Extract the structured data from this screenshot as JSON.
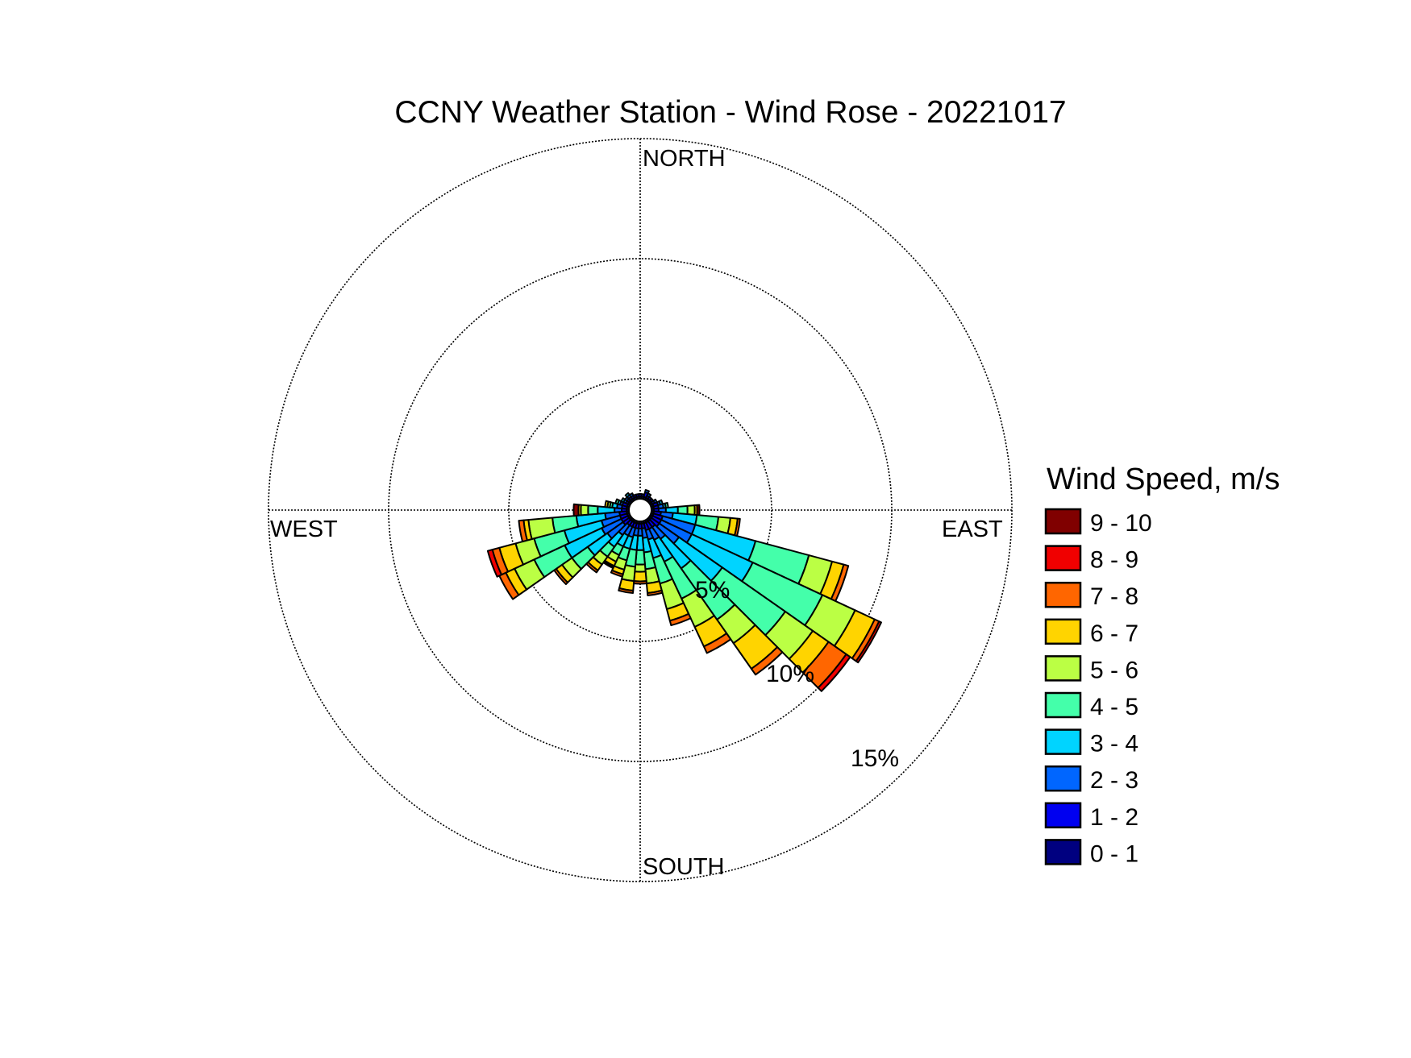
{
  "chart_data": {
    "type": "polar-stacked-bar",
    "title": "CCNY Weather Station - Wind Rose - 20221017",
    "compass_labels": {
      "north": "NORTH",
      "east": "EAST",
      "south": "SOUTH",
      "west": "WEST"
    },
    "radial_unit": "percent frequency",
    "radial_ticks": [
      5,
      10,
      15
    ],
    "radial_tick_labels": [
      "5%",
      "10%",
      "15%"
    ],
    "rlim": [
      0,
      15
    ],
    "grid": true,
    "legend": {
      "title": "Wind Speed, m/s",
      "placement": "right",
      "entries": [
        {
          "label": "9 - 10",
          "color": "#800000"
        },
        {
          "label": "8 - 9",
          "color": "#f00000"
        },
        {
          "label": "7 - 8",
          "color": "#ff6600"
        },
        {
          "label": "6 - 7",
          "color": "#ffd400"
        },
        {
          "label": "5 - 6",
          "color": "#bbff44"
        },
        {
          "label": "4 - 5",
          "color": "#44ffaa"
        },
        {
          "label": "3 - 4",
          "color": "#00d4ff"
        },
        {
          "label": "2 - 3",
          "color": "#0066ff"
        },
        {
          "label": "1 - 2",
          "color": "#0000f0"
        },
        {
          "label": "0 - 1",
          "color": "#000080"
        }
      ]
    },
    "speed_bins": [
      "0 - 1",
      "1 - 2",
      "2 - 3",
      "3 - 4",
      "4 - 5",
      "5 - 6",
      "6 - 7",
      "7 - 8",
      "8 - 9",
      "9 - 10"
    ],
    "sector_width_deg": 10,
    "directions_deg": [
      0,
      10,
      20,
      30,
      40,
      50,
      60,
      70,
      80,
      90,
      100,
      110,
      120,
      130,
      140,
      150,
      160,
      170,
      180,
      190,
      200,
      210,
      220,
      230,
      240,
      250,
      260,
      270,
      280,
      290,
      300,
      310,
      320,
      330,
      340,
      350
    ],
    "frequencies_percent": [
      [
        0.1,
        0.1,
        0,
        0,
        0,
        0,
        0,
        0,
        0,
        0
      ],
      [
        0.1,
        0.1,
        0,
        0,
        0,
        0,
        0,
        0,
        0,
        0
      ],
      [
        0.1,
        0.2,
        0.1,
        0,
        0,
        0,
        0,
        0,
        0,
        0
      ],
      [
        0.1,
        0.1,
        0.1,
        0,
        0,
        0,
        0,
        0,
        0,
        0
      ],
      [
        0.1,
        0.1,
        0,
        0,
        0,
        0,
        0,
        0,
        0,
        0
      ],
      [
        0.1,
        0.1,
        0,
        0,
        0,
        0,
        0,
        0,
        0,
        0
      ],
      [
        0.1,
        0.1,
        0.1,
        0,
        0,
        0,
        0,
        0,
        0,
        0
      ],
      [
        0.1,
        0.2,
        0.1,
        0.1,
        0,
        0,
        0,
        0,
        0,
        0
      ],
      [
        0.1,
        0.2,
        0.2,
        0.1,
        0.1,
        0,
        0,
        0,
        0,
        0
      ],
      [
        0.1,
        0.2,
        0.3,
        0.5,
        0.4,
        0.3,
        0.1,
        0,
        0,
        0.1
      ],
      [
        0.1,
        0.3,
        0.5,
        1.0,
        0.9,
        0.5,
        0.3,
        0.1,
        0,
        0
      ],
      [
        0.1,
        0.4,
        1.4,
        2.6,
        2.3,
        1.0,
        0.5,
        0.2,
        0,
        0
      ],
      [
        0.1,
        0.4,
        1.4,
        2.8,
        3.2,
        1.5,
        0.9,
        0.2,
        0.1,
        0
      ],
      [
        0.1,
        0.4,
        1.0,
        2.2,
        3.2,
        1.4,
        0.8,
        0.9,
        0.2,
        0
      ],
      [
        0.1,
        0.3,
        0.6,
        1.5,
        2.6,
        1.2,
        1.3,
        0.3,
        0,
        0
      ],
      [
        0.1,
        0.3,
        0.5,
        1.0,
        1.7,
        1.3,
        0.9,
        0.3,
        0,
        0
      ],
      [
        0.1,
        0.3,
        0.4,
        0.8,
        1.1,
        1.1,
        0.5,
        0.2,
        0,
        0
      ],
      [
        0.1,
        0.2,
        0.4,
        0.6,
        0.7,
        0.6,
        0.4,
        0.1,
        0,
        0
      ],
      [
        0.1,
        0.2,
        0.3,
        0.6,
        0.6,
        0.3,
        0.4,
        0.1,
        0,
        0
      ],
      [
        0.1,
        0.2,
        0.3,
        0.6,
        0.7,
        0.6,
        0.4,
        0.1,
        0,
        0
      ],
      [
        0.1,
        0.2,
        0.4,
        0.5,
        0.5,
        0.4,
        0.2,
        0.1,
        0,
        0
      ],
      [
        0.1,
        0.2,
        0.4,
        0.5,
        0.4,
        0.3,
        0.2,
        0.05,
        0.05,
        0
      ],
      [
        0.1,
        0.2,
        0.5,
        0.6,
        0.5,
        0.4,
        0.3,
        0.1,
        0,
        0
      ],
      [
        0.1,
        0.3,
        0.8,
        1.0,
        0.8,
        0.5,
        0.3,
        0.1,
        0,
        0
      ],
      [
        0.1,
        0.3,
        0.9,
        1.7,
        1.4,
        0.9,
        0.4,
        0.3,
        0,
        0
      ],
      [
        0.1,
        0.3,
        0.8,
        1.6,
        1.3,
        0.8,
        0.7,
        0.3,
        0.2,
        0
      ],
      [
        0.1,
        0.3,
        0.6,
        1.2,
        1.0,
        1.0,
        0.2,
        0.2,
        0,
        0
      ],
      [
        0.1,
        0.2,
        0.3,
        0.7,
        0.4,
        0.3,
        0.1,
        0,
        0,
        0.2
      ],
      [
        0.1,
        0.2,
        0.2,
        0.2,
        0.1,
        0.1,
        0.1,
        0,
        0,
        0
      ],
      [
        0.1,
        0.2,
        0.1,
        0.1,
        0.1,
        0,
        0,
        0,
        0,
        0
      ],
      [
        0.1,
        0.1,
        0.1,
        0.1,
        0,
        0,
        0,
        0,
        0,
        0
      ],
      [
        0.1,
        0.1,
        0.1,
        0,
        0,
        0,
        0,
        0,
        0,
        0
      ],
      [
        0.1,
        0.1,
        0.1,
        0.1,
        0,
        0,
        0,
        0,
        0,
        0
      ],
      [
        0.1,
        0.1,
        0.1,
        0,
        0,
        0,
        0,
        0,
        0,
        0
      ],
      [
        0.1,
        0.1,
        0,
        0,
        0,
        0,
        0,
        0,
        0,
        0
      ],
      [
        0.1,
        0.1,
        0,
        0,
        0,
        0,
        0,
        0,
        0,
        0
      ]
    ]
  }
}
